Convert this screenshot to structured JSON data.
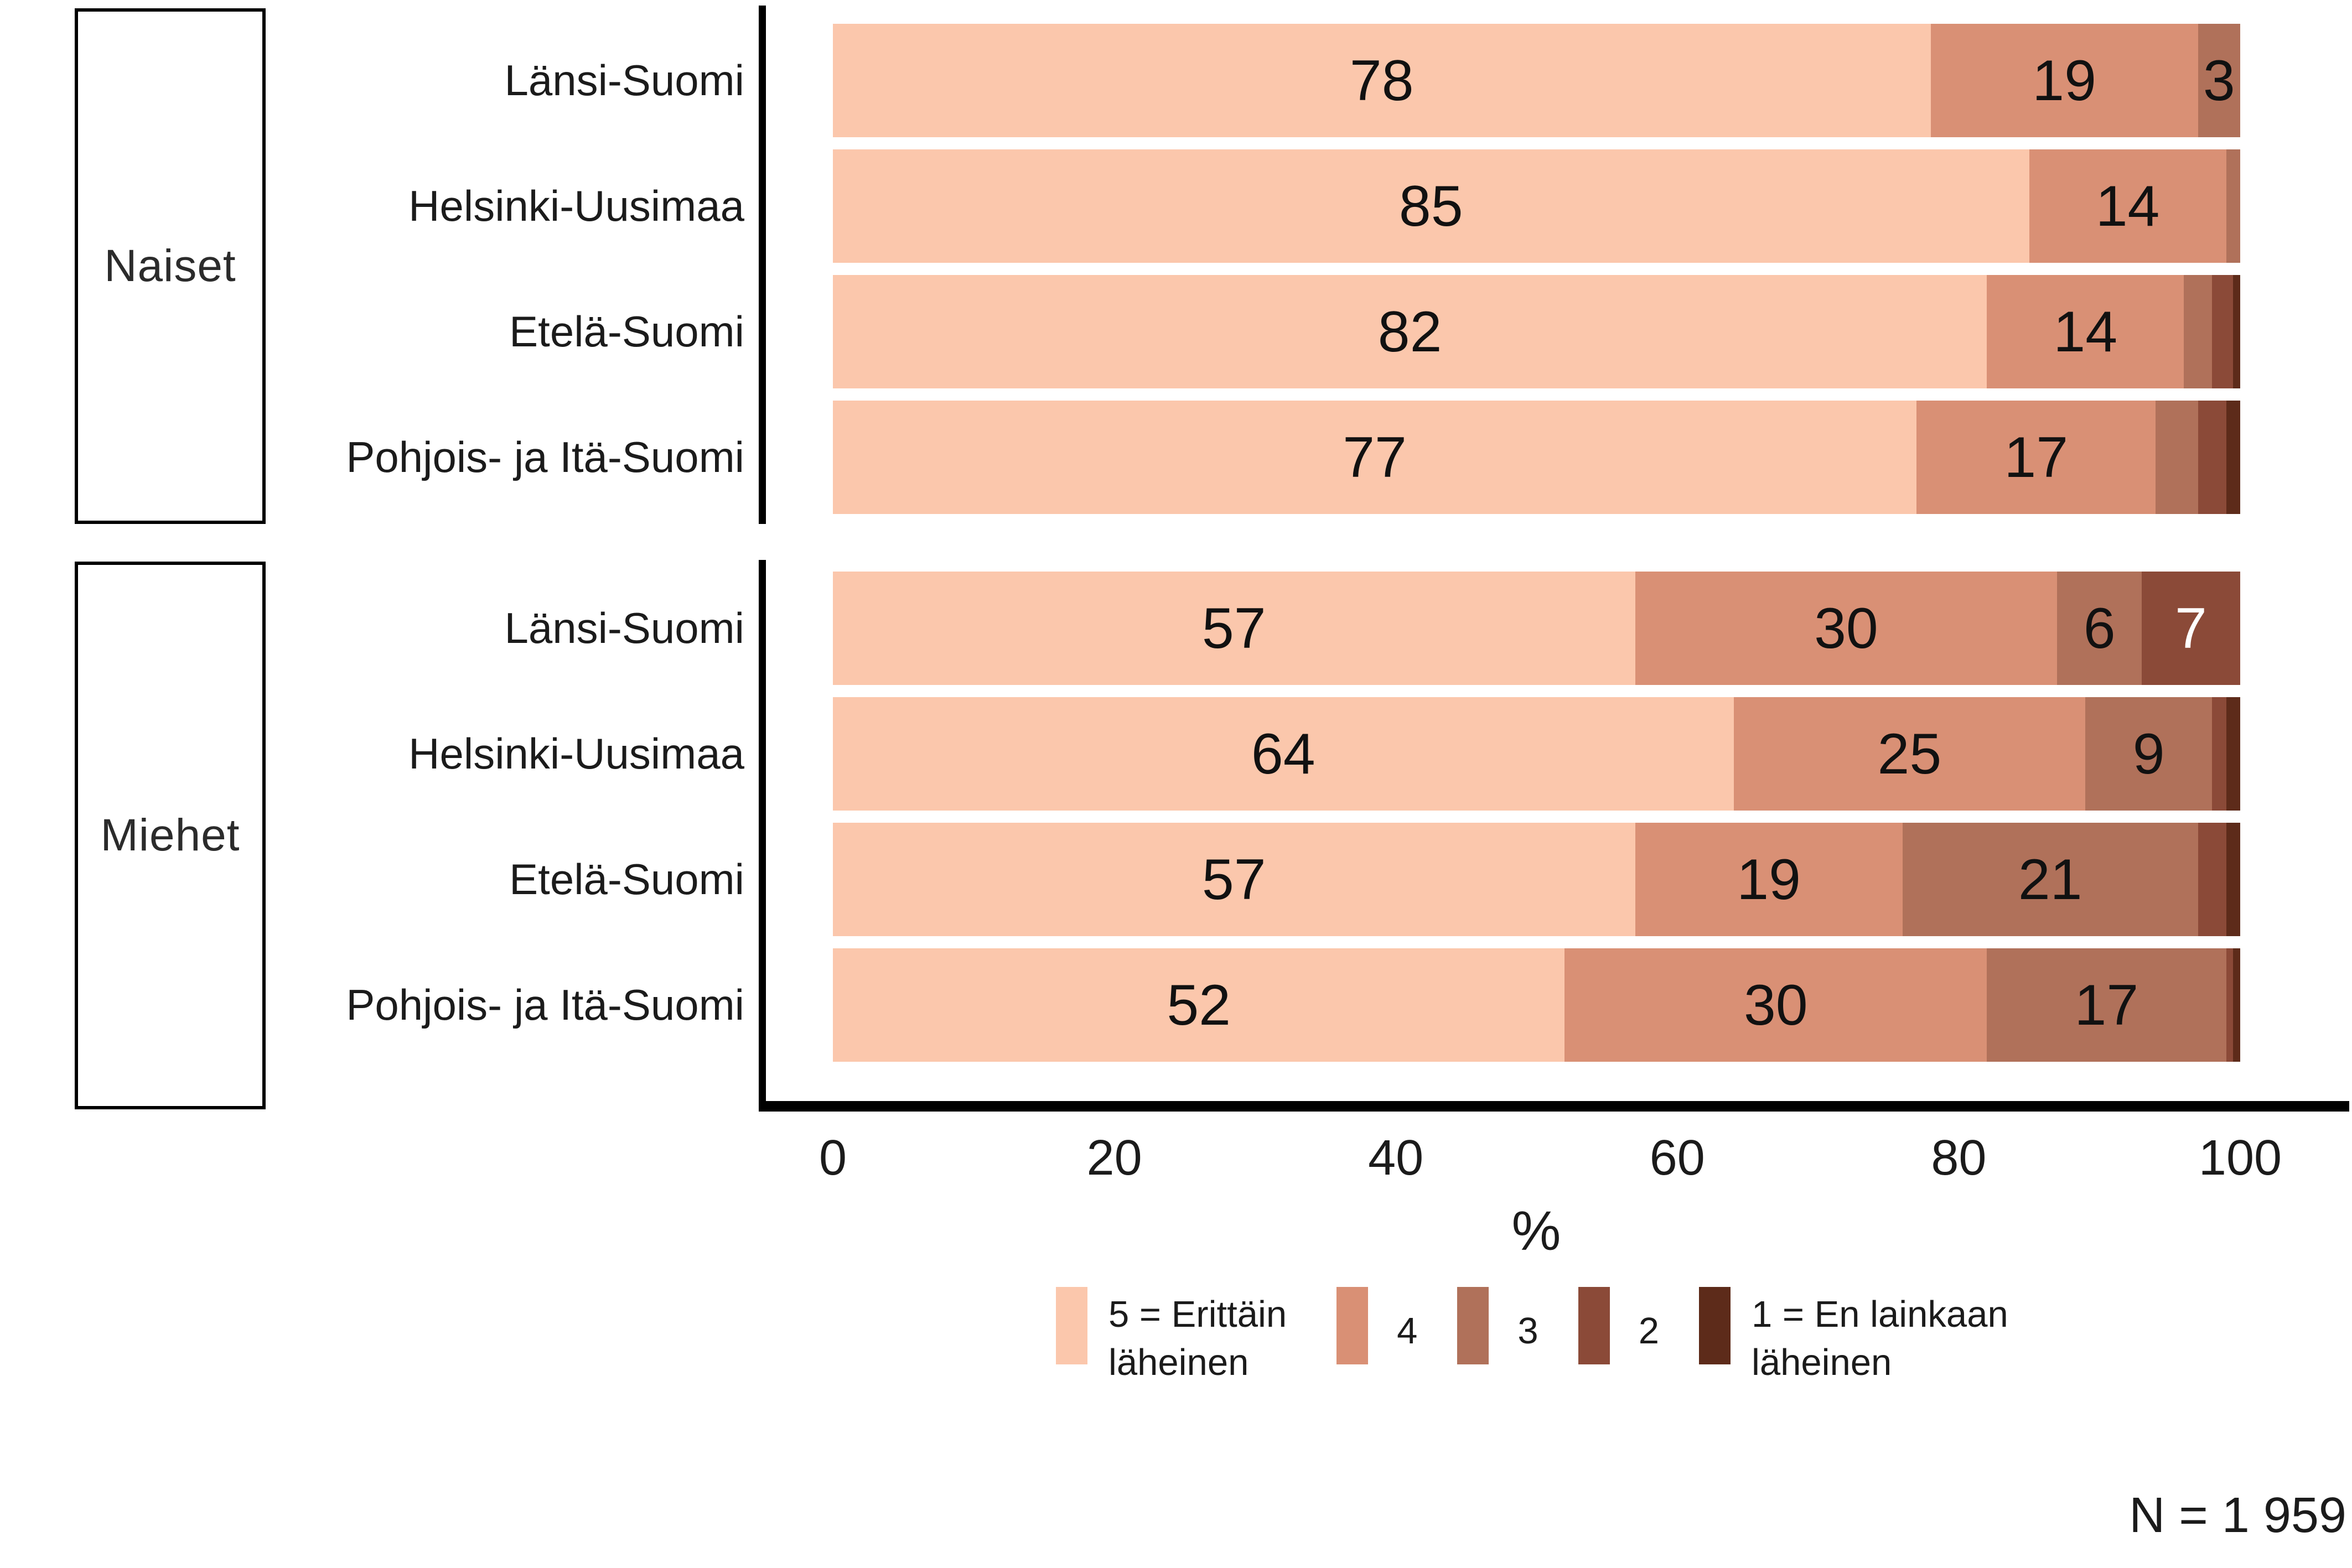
{
  "chart_data": {
    "type": "bar",
    "subtype": "horizontal-stacked",
    "xlabel": "%",
    "xlim": [
      0,
      100
    ],
    "x_ticks": [
      "0",
      "20",
      "40",
      "60",
      "80",
      "100"
    ],
    "grid": false,
    "legend_position": "bottom",
    "colors": {
      "scale5": "#FBC7AC",
      "scale4": "#D99075",
      "scale3": "#B0715A",
      "scale2": "#8B4A38",
      "scale1": "#5D2B1A",
      "axis": "#000000",
      "label_dark": "#1b1b1b",
      "label_light": "#ffffff"
    },
    "legend": [
      {
        "key": "5",
        "label": "5 = Erittäin\nläheinen",
        "color": "#FBC7AC"
      },
      {
        "key": "4",
        "label": "4",
        "color": "#D99075"
      },
      {
        "key": "3",
        "label": "3",
        "color": "#B0715A"
      },
      {
        "key": "2",
        "label": "2",
        "color": "#8B4A38"
      },
      {
        "key": "1",
        "label": "1 = En lainkaan\nläheinen",
        "color": "#5D2B1A"
      }
    ],
    "groups": [
      {
        "name": "Naiset",
        "rows": [
          {
            "label": "Länsi-Suomi",
            "values": [
              78,
              19,
              3,
              0,
              0
            ],
            "value_labels": [
              "78",
              "19",
              "3",
              "",
              ""
            ]
          },
          {
            "label": "Helsinki-Uusimaa",
            "values": [
              85,
              14,
              1,
              0,
              0
            ],
            "value_labels": [
              "85",
              "14",
              "",
              "",
              ""
            ]
          },
          {
            "label": "Etelä-Suomi",
            "values": [
              82,
              14,
              2,
              1.5,
              0.5
            ],
            "value_labels": [
              "82",
              "14",
              "",
              "",
              ""
            ]
          },
          {
            "label": "Pohjois- ja Itä-Suomi",
            "values": [
              77,
              17,
              3,
              2,
              1
            ],
            "value_labels": [
              "77",
              "17",
              "",
              "",
              ""
            ]
          }
        ]
      },
      {
        "name": "Miehet",
        "rows": [
          {
            "label": "Länsi-Suomi",
            "values": [
              57,
              30,
              6,
              7,
              0
            ],
            "value_labels": [
              "57",
              "30",
              "6",
              "7",
              ""
            ]
          },
          {
            "label": "Helsinki-Uusimaa",
            "values": [
              64,
              25,
              9,
              1,
              1
            ],
            "value_labels": [
              "64",
              "25",
              "9",
              "",
              ""
            ]
          },
          {
            "label": "Etelä-Suomi",
            "values": [
              57,
              19,
              21,
              2,
              1
            ],
            "value_labels": [
              "57",
              "19",
              "21",
              "",
              ""
            ]
          },
          {
            "label": "Pohjois- ja Itä-Suomi",
            "values": [
              52,
              30,
              17,
              0.5,
              0.5
            ],
            "value_labels": [
              "52",
              "30",
              "17",
              "",
              ""
            ]
          }
        ]
      }
    ],
    "note": "N = 1 959"
  }
}
